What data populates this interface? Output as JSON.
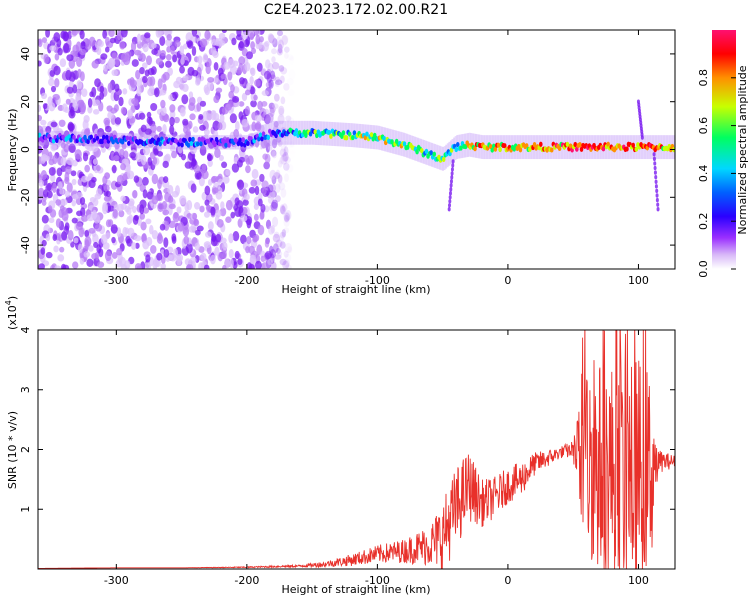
{
  "title": "C2E4.2023.172.02.00.R21",
  "colors": {
    "snr_line": "#e8302a",
    "spectrum_low": "#8a2be2",
    "colormap": [
      "#ffffff",
      "#d8b8f8",
      "#9b30ff",
      "#2a00ff",
      "#0060ff",
      "#00d8ff",
      "#00ff60",
      "#c8ff00",
      "#ff9000",
      "#ff0000",
      "#ff1070"
    ]
  },
  "chart_data": [
    {
      "type": "heatmap",
      "title": "C2E4.2023.172.02.00.R21",
      "xlabel": "Height of straight line (km)",
      "ylabel": "Frequency (Hz)",
      "xlim": [
        -360,
        128
      ],
      "ylim": [
        -50,
        50
      ],
      "x_ticks": [
        -300,
        -200,
        -100,
        0,
        100
      ],
      "x_tick_labels": [
        "-300",
        "-200",
        "-100",
        "0",
        "100"
      ],
      "y_ticks": [
        -40,
        -20,
        0,
        20,
        40
      ],
      "y_tick_labels": [
        "-40",
        "-20",
        "0",
        "20",
        "40"
      ],
      "colorbar": {
        "label": "Normalized spectral amplitude",
        "range": [
          0,
          1
        ],
        "ticks": [
          0.0,
          0.2,
          0.4,
          0.6,
          0.8
        ],
        "tick_labels": [
          "0.0",
          "0.2",
          "0.4",
          "0.6",
          "0.8"
        ]
      },
      "ridge": {
        "x": [
          -360,
          -300,
          -250,
          -200,
          -180,
          -150,
          -120,
          -100,
          -80,
          -60,
          -50,
          -40,
          -30,
          -20,
          0,
          20,
          40,
          60,
          80,
          100,
          110,
          128
        ],
        "y": [
          5,
          4,
          3,
          3,
          7,
          7,
          6,
          5,
          2,
          -2,
          -4,
          1,
          2,
          1,
          1,
          1,
          1,
          1,
          1,
          1,
          1,
          1
        ],
        "amplitude": [
          0.3,
          0.3,
          0.3,
          0.3,
          0.35,
          0.5,
          0.6,
          0.65,
          0.6,
          0.55,
          0.55,
          0.6,
          0.7,
          0.8,
          0.75,
          0.8,
          0.8,
          0.85,
          0.8,
          0.85,
          0.8,
          0.7
        ]
      },
      "noise_region_x": [
        -360,
        -165
      ],
      "grid": false
    },
    {
      "type": "line",
      "xlabel": "Height of straight line (km)",
      "ylabel": "SNR (10 * v/v)",
      "y_scale_label": "(x10",
      "y_scale_exponent": "4",
      "y_scale_suffix": ")",
      "xlim": [
        -360,
        128
      ],
      "ylim": [
        0,
        4
      ],
      "x_ticks": [
        -300,
        -200,
        -100,
        0,
        100
      ],
      "x_tick_labels": [
        "-300",
        "-200",
        "-100",
        "0",
        "100"
      ],
      "y_ticks": [
        1,
        2,
        3,
        4
      ],
      "y_tick_labels": [
        "1",
        "2",
        "3",
        "4"
      ],
      "series": [
        {
          "x": [
            -360,
            -300,
            -250,
            -200,
            -160,
            -140,
            -120,
            -100,
            -80,
            -60,
            -50,
            -40,
            -30,
            -20,
            -10,
            0,
            10,
            20,
            30,
            40,
            50,
            55,
            60,
            70,
            80,
            90,
            100,
            110,
            115,
            128
          ],
          "y": [
            0.01,
            0.02,
            0.02,
            0.03,
            0.05,
            0.08,
            0.15,
            0.25,
            0.3,
            0.4,
            0.55,
            1.0,
            1.4,
            1.1,
            1.2,
            1.4,
            1.5,
            1.75,
            1.85,
            1.95,
            2.0,
            1.85,
            1.8,
            1.7,
            1.6,
            1.5,
            1.6,
            1.7,
            1.8,
            1.8
          ],
          "spread": [
            0,
            0,
            0,
            0.01,
            0.02,
            0.05,
            0.1,
            0.15,
            0.2,
            0.35,
            0.6,
            0.7,
            0.6,
            0.4,
            0.35,
            0.3,
            0.3,
            0.2,
            0.15,
            0.1,
            0.15,
            1.0,
            1.6,
            1.8,
            1.9,
            1.9,
            2.0,
            1.6,
            0.2,
            0.1
          ]
        }
      ],
      "grid": false
    }
  ]
}
